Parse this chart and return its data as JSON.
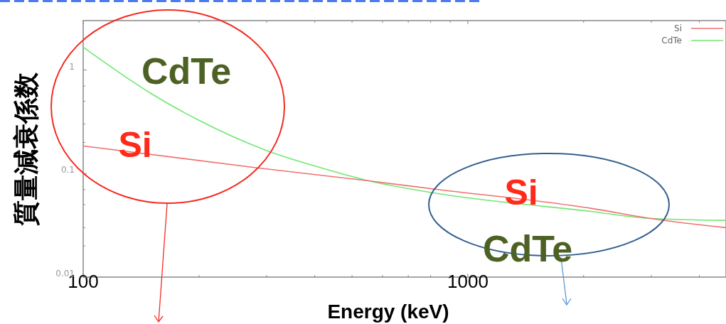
{
  "chart_data": {
    "type": "line",
    "xlabel": "Energy (keV)",
    "ylabel": "質量減衰係数",
    "log": "xy",
    "legend": "top right",
    "xlim": [
      100,
      4690
    ],
    "ylim": [
      0.01,
      3
    ],
    "xticks": [
      100,
      {
        "value": 200,
        "label": null
      },
      {
        "value": 300,
        "label": null
      },
      {
        "value": 400,
        "label": null
      },
      {
        "value": 500,
        "label": null
      },
      {
        "value": 600,
        "label": null
      },
      {
        "value": 700,
        "label": null
      },
      {
        "value": 800,
        "label": null
      },
      {
        "value": 900,
        "label": null
      },
      1000,
      {
        "value": 2000,
        "label": null
      },
      {
        "value": 3000,
        "label": null
      },
      {
        "value": 4000,
        "label": null
      }
    ],
    "yticks": [
      0.01,
      {
        "value": 0.02,
        "label": null
      },
      {
        "value": 0.03,
        "label": null
      },
      {
        "value": 0.05,
        "label": null
      },
      {
        "value": 0.07,
        "label": null
      },
      0.1,
      {
        "value": 0.2,
        "label": null
      },
      {
        "value": 0.3,
        "label": null
      },
      {
        "value": 0.5,
        "label": null
      },
      {
        "value": 0.7,
        "label": null
      },
      1,
      {
        "value": 2,
        "label": null
      }
    ],
    "series": [
      {
        "name": "Si",
        "color": "#f07070",
        "x": [
          100,
          281,
          553,
          815,
          2100,
          2960,
          4690
        ],
        "values": [
          0.185,
          0.114,
          0.085,
          0.071,
          0.046,
          0.037,
          0.03
        ]
      },
      {
        "name": "CdTe",
        "color": "#70e870",
        "x": [
          100,
          150,
          197,
          301,
          404,
          553,
          815,
          2100,
          2960,
          4690
        ],
        "values": [
          1.66,
          0.594,
          0.336,
          0.166,
          0.117,
          0.085,
          0.065,
          0.043,
          0.037,
          0.0353
        ]
      }
    ],
    "annotations": [
      "CdTe",
      "Si",
      "Si",
      "CdTe"
    ]
  }
}
